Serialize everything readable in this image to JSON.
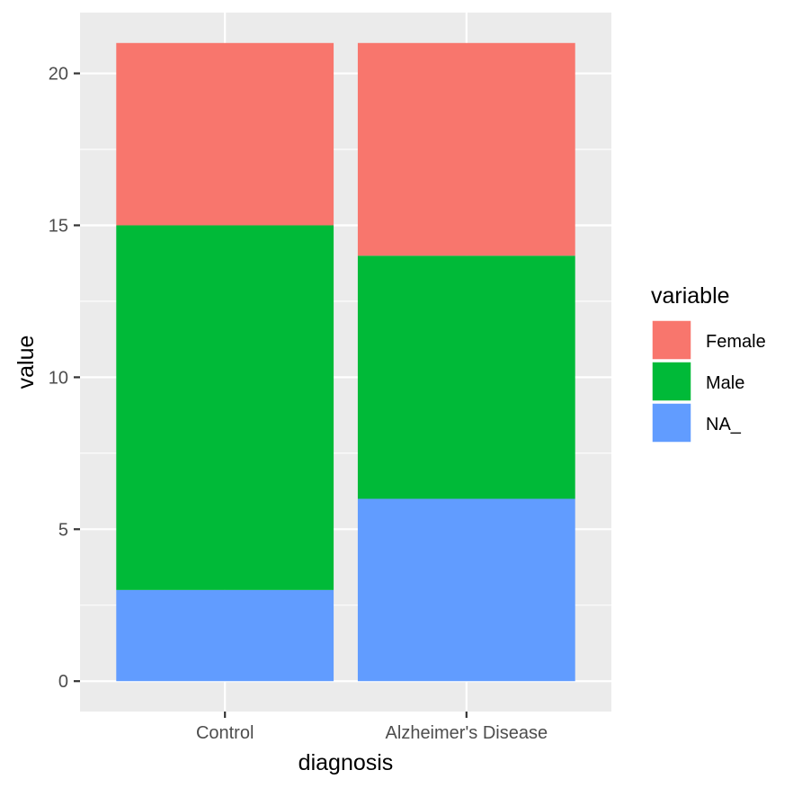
{
  "chart_data": {
    "type": "bar",
    "stacked": true,
    "title": "",
    "xlabel": "diagnosis",
    "ylabel": "value",
    "categories": [
      "Control",
      "Alzheimer's Disease"
    ],
    "series": [
      {
        "name": "Female",
        "values": [
          6,
          7
        ],
        "color": "#F8766D"
      },
      {
        "name": "Male",
        "values": [
          12,
          8
        ],
        "color": "#00BA38"
      },
      {
        "name": "NA_",
        "values": [
          3,
          6
        ],
        "color": "#619CFF"
      }
    ],
    "stack_order_bottom_to_top": [
      "NA_",
      "Male",
      "Female"
    ],
    "ylim": [
      -1,
      22
    ],
    "yticks": [
      0,
      5,
      10,
      15,
      20
    ],
    "grid": true,
    "legend": {
      "title": "variable",
      "position": "right"
    },
    "panel_background": "#EBEBEB",
    "grid_color": "#FFFFFF"
  }
}
